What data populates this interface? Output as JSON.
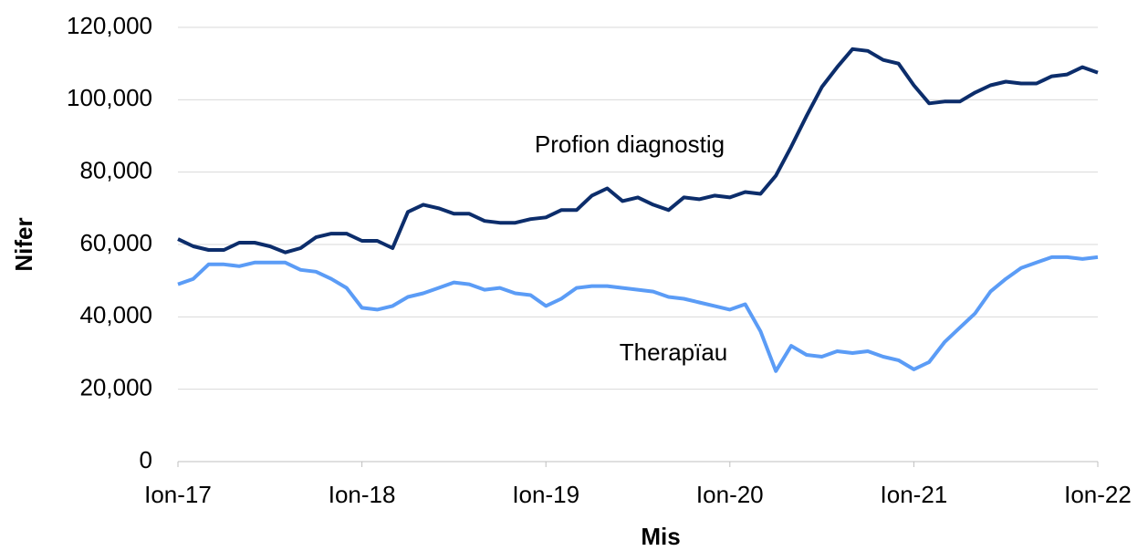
{
  "chart_data": {
    "type": "line",
    "x_label": "Mis",
    "y_label": "Nifer",
    "categories": [
      "Ion-17",
      null,
      null,
      null,
      null,
      null,
      null,
      null,
      null,
      null,
      null,
      null,
      "Ion-18",
      null,
      null,
      null,
      null,
      null,
      null,
      null,
      null,
      null,
      null,
      null,
      "Ion-19",
      null,
      null,
      null,
      null,
      null,
      null,
      null,
      null,
      null,
      null,
      null,
      "Ion-20",
      null,
      null,
      null,
      null,
      null,
      null,
      null,
      null,
      null,
      null,
      null,
      "Ion-21",
      null,
      null,
      null,
      null,
      null,
      null,
      null,
      null,
      null,
      null,
      null,
      "Ion-22"
    ],
    "series": [
      {
        "name": "Profion diagnostig",
        "color": "#0c2d6b",
        "values": [
          61500,
          59500,
          58500,
          58500,
          60500,
          60500,
          59500,
          57800,
          59000,
          62000,
          63000,
          63000,
          61000,
          61000,
          59000,
          69000,
          71000,
          70000,
          68500,
          68500,
          66500,
          66000,
          66000,
          67000,
          67500,
          69500,
          69500,
          73500,
          75500,
          72000,
          73000,
          71000,
          69500,
          73000,
          72500,
          73500,
          73000,
          74500,
          74000,
          79000,
          87000,
          95500,
          103500,
          109000,
          114000,
          113500,
          111000,
          110000,
          104000,
          99000,
          99500,
          99500,
          102000,
          104000,
          105000,
          104500,
          104500,
          106500,
          107000,
          109000,
          107500
        ]
      },
      {
        "name": "Therapïau",
        "color": "#5b9cf6",
        "values": [
          49000,
          50500,
          54500,
          54500,
          54000,
          55000,
          55000,
          55000,
          53000,
          52500,
          50500,
          48000,
          42500,
          42000,
          43000,
          45500,
          46500,
          48000,
          49500,
          49000,
          47500,
          48000,
          46500,
          46000,
          43000,
          45000,
          48000,
          48500,
          48500,
          48000,
          47500,
          47000,
          45500,
          45000,
          44000,
          43000,
          42000,
          43500,
          36000,
          25000,
          32000,
          29500,
          29000,
          30500,
          30000,
          30500,
          29000,
          28000,
          25500,
          27500,
          33000,
          37000,
          41000,
          47000,
          50500,
          53500,
          55000,
          56500,
          56500,
          56000,
          56500
        ]
      }
    ],
    "ylim": [
      0,
      120000
    ],
    "yticks": [
      0,
      {
        "value": 20000,
        "label": "20,000"
      },
      {
        "value": 40000,
        "label": "40,000"
      },
      {
        "value": 60000,
        "label": "60,000"
      },
      {
        "value": 80000,
        "label": "80,000"
      },
      {
        "value": 100000,
        "label": "100,000"
      },
      {
        "value": 120000,
        "label": "120,000"
      }
    ],
    "grid": true
  }
}
